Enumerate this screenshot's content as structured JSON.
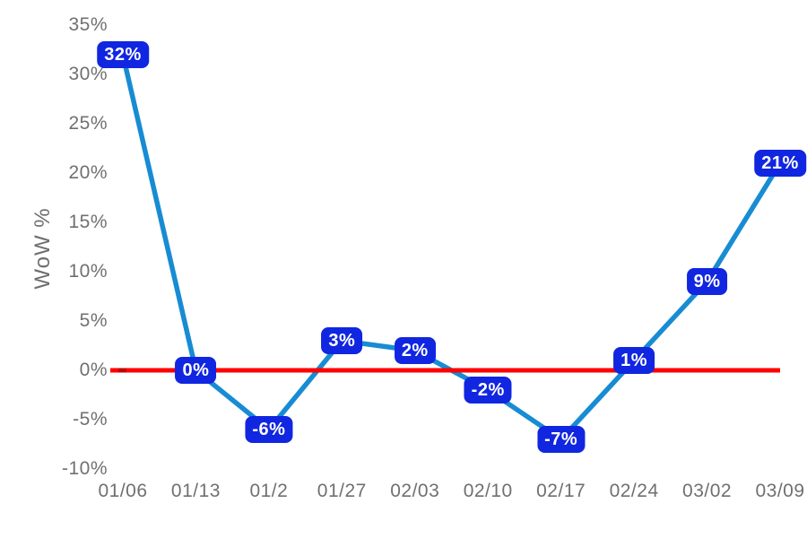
{
  "chart_data": {
    "type": "line",
    "title": "",
    "xlabel": "",
    "ylabel": "WoW %",
    "categories": [
      "01/06",
      "01/13",
      "01/2",
      "01/27",
      "02/03",
      "02/10",
      "02/17",
      "02/24",
      "03/02",
      "03/09"
    ],
    "series": [
      {
        "name": "WoW %",
        "values": [
          32,
          0,
          -6,
          3,
          2,
          -2,
          -7,
          1,
          9,
          21
        ]
      },
      {
        "name": "zero-baseline",
        "values": [
          0,
          0,
          0,
          0,
          0,
          0,
          0,
          0,
          0,
          0
        ]
      }
    ],
    "data_labels": [
      "32%",
      "0%",
      "-6%",
      "3%",
      "2%",
      "-2%",
      "-7%",
      "1%",
      "9%",
      "21%"
    ],
    "y_ticks": [
      "35%",
      "30%",
      "25%",
      "20%",
      "15%",
      "10%",
      "5%",
      "0%",
      "-5%",
      "-10%"
    ],
    "y_tick_values": [
      35,
      30,
      25,
      20,
      15,
      10,
      5,
      0,
      -5,
      -10
    ],
    "ylim": [
      -10,
      35
    ],
    "grid": false,
    "legend": "none",
    "colors": {
      "line": "#178cd3",
      "label_bg": "#1126e0",
      "label_text": "#ffffff",
      "zero_line": "#ff0000",
      "zero_line_marker": "#c40000",
      "axis_text": "#707070"
    }
  }
}
